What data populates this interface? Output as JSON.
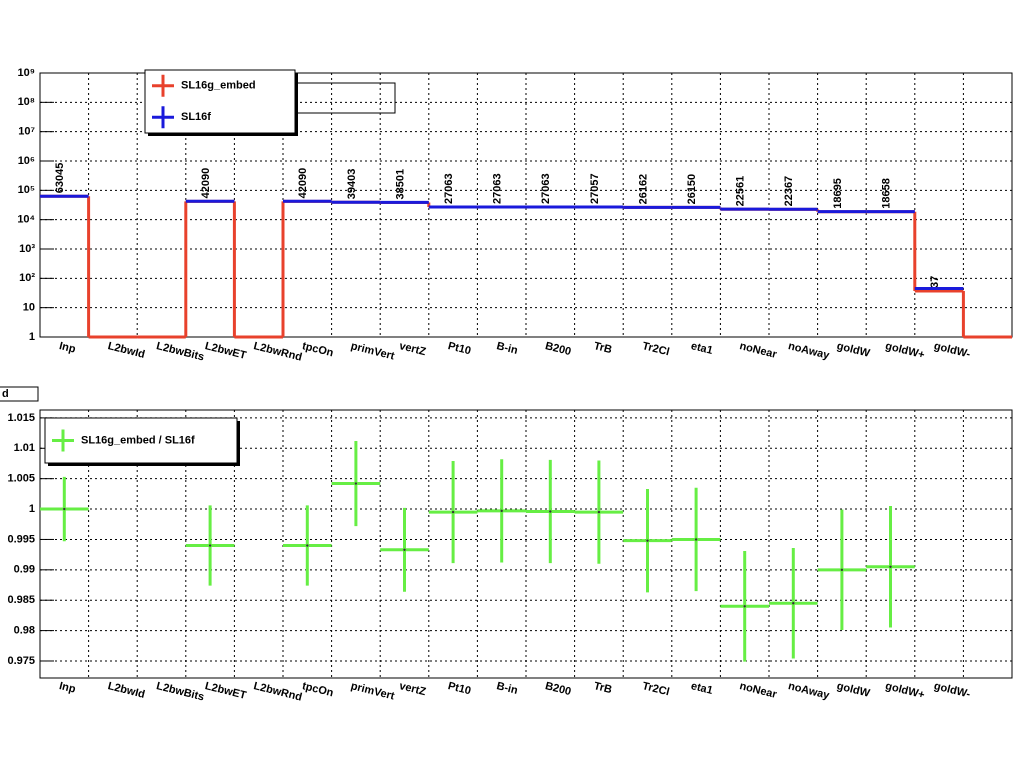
{
  "chart_data": [
    {
      "type": "hist",
      "log_y": true,
      "grid": true,
      "categories": [
        "Inp",
        "L2bwId",
        "L2bwBits",
        "L2bwET",
        "L2bwRnd",
        "tpcOn",
        "primVert",
        "vertZ",
        "Pt10",
        "B-in",
        "B200",
        "TrB",
        "Tr2Cl",
        "eta1",
        "noNear",
        "noAway",
        "goldW",
        "goldW+",
        "goldW-",
        null
      ],
      "series": [
        {
          "name": "SL16g_embed",
          "color": "#e8412c",
          "data_labels": true,
          "values": [
            63045,
            1,
            1,
            42090,
            1,
            42090,
            39403,
            38501,
            27063,
            27063,
            27063,
            27057,
            26162,
            26150,
            22561,
            22367,
            18695,
            18658,
            37,
            1
          ]
        },
        {
          "name": "SL16f",
          "color": "#1a1adb",
          "values": [
            63045,
            null,
            null,
            42344,
            null,
            42344,
            39238,
            38761,
            27077,
            27077,
            27077,
            27071,
            26299,
            26281,
            22928,
            22719,
            18884,
            18837,
            45,
            null
          ]
        }
      ],
      "ylim": [
        1,
        1000000000
      ],
      "yticks": [
        1,
        10,
        {
          "value": 100,
          "label": "10²"
        },
        {
          "value": 1000,
          "label": "10³"
        },
        {
          "value": 10000,
          "label": "10⁴"
        },
        {
          "value": 100000,
          "label": "10⁵"
        },
        {
          "value": 1000000,
          "label": "10⁶"
        },
        {
          "value": 10000000,
          "label": "10⁷"
        },
        {
          "value": 100000000,
          "label": "10⁸"
        },
        {
          "value": 1000000000,
          "label": "10⁹"
        }
      ]
    },
    {
      "type": "errorbar",
      "title": "d",
      "grid": true,
      "categories": [
        "Inp",
        "L2bwId",
        "L2bwBits",
        "L2bwET",
        "L2bwRnd",
        "tpcOn",
        "primVert",
        "vertZ",
        "Pt10",
        "B-in",
        "B200",
        "TrB",
        "Tr2Cl",
        "eta1",
        "noNear",
        "noAway",
        "goldW",
        "goldW+",
        "goldW-",
        null
      ],
      "series": [
        {
          "name": "SL16g_embed / SL16f",
          "color": "#66ee44",
          "values": [
            1.0,
            null,
            null,
            0.994,
            null,
            0.994,
            1.0042,
            0.9933,
            0.9995,
            0.9997,
            0.9996,
            0.9995,
            0.9948,
            0.995,
            0.984,
            0.9845,
            0.99,
            0.9905,
            null,
            null
          ],
          "errors": [
            0.0053,
            null,
            null,
            0.0066,
            null,
            0.0066,
            0.007,
            0.0069,
            0.0084,
            0.0085,
            0.0085,
            0.0085,
            0.0085,
            0.0085,
            0.0091,
            0.0091,
            0.0099,
            0.01,
            null,
            null
          ]
        }
      ],
      "ylim": [
        0.9722,
        1.0163
      ],
      "yticks": [
        0.975,
        0.98,
        0.985,
        0.99,
        0.995,
        1,
        1.005,
        1.01,
        1.015
      ]
    }
  ]
}
